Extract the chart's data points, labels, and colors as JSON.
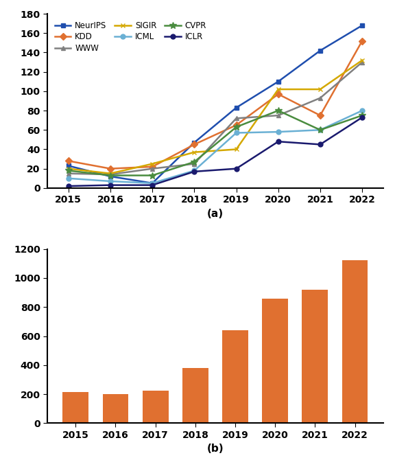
{
  "years": [
    2015,
    2016,
    2017,
    2018,
    2019,
    2020,
    2021,
    2022
  ],
  "line_data": {
    "NeurIPS": [
      23,
      12,
      5,
      47,
      83,
      110,
      142,
      168
    ],
    "KDD": [
      28,
      20,
      22,
      45,
      65,
      97,
      75,
      152
    ],
    "WWW": [
      15,
      14,
      20,
      25,
      72,
      75,
      93,
      130
    ],
    "SIGIR": [
      20,
      15,
      25,
      37,
      40,
      102,
      102,
      132
    ],
    "ICML": [
      10,
      7,
      5,
      18,
      57,
      58,
      60,
      80
    ],
    "CVPR": [
      18,
      13,
      13,
      27,
      63,
      80,
      60,
      75
    ],
    "ICLR": [
      2,
      3,
      3,
      17,
      20,
      48,
      45,
      73
    ]
  },
  "line_colors": {
    "NeurIPS": "#1f4eae",
    "KDD": "#e07030",
    "WWW": "#808080",
    "SIGIR": "#d4a800",
    "ICML": "#6ab0d4",
    "CVPR": "#4a8c3f",
    "ICLR": "#1a1a6e"
  },
  "line_markers": {
    "NeurIPS": "s",
    "KDD": "D",
    "WWW": "^",
    "SIGIR": "x",
    "ICML": "o",
    "CVPR": "*",
    "ICLR": "o"
  },
  "bar_years": [
    2015,
    2016,
    2017,
    2018,
    2019,
    2020,
    2021,
    2022
  ],
  "bar_values": [
    215,
    200,
    222,
    382,
    640,
    858,
    920,
    1121
  ],
  "bar_color": "#e07030",
  "line_ylim": [
    0,
    180
  ],
  "line_yticks": [
    0,
    20,
    40,
    60,
    80,
    100,
    120,
    140,
    160,
    180
  ],
  "bar_ylim": [
    0,
    1200
  ],
  "bar_yticks": [
    0,
    200,
    400,
    600,
    800,
    1000,
    1200
  ],
  "label_a": "(a)",
  "label_b": "(b)"
}
